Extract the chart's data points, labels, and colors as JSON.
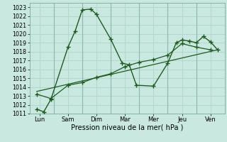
{
  "xlabel": "Pression niveau de la mer( hPa )",
  "ylim": [
    1011,
    1023.5
  ],
  "yticks": [
    1011,
    1012,
    1013,
    1014,
    1015,
    1016,
    1017,
    1018,
    1019,
    1020,
    1021,
    1022,
    1023
  ],
  "xlim": [
    -0.2,
    13.5
  ],
  "xtick_positions": [
    0.5,
    2.5,
    4.5,
    6.5,
    8.5,
    10.5,
    12.5
  ],
  "xtick_labels": [
    "Lun",
    "Sam",
    "Dim",
    "Mar",
    "Mer",
    "Jeu",
    "Ven"
  ],
  "bg_color": "#c8e8e0",
  "grid_color": "#b0d4ca",
  "line_color": "#1e5c1e",
  "line1_x": [
    0.3,
    0.8,
    1.3,
    2.5,
    3.0,
    3.5,
    4.1,
    4.5,
    5.5,
    6.3,
    6.8,
    7.3,
    8.5,
    9.5,
    10.1,
    10.5,
    11.0,
    11.5,
    12.0,
    12.5,
    13.0
  ],
  "line1_y": [
    1011.5,
    1011.2,
    1012.6,
    1018.5,
    1020.3,
    1022.7,
    1022.8,
    1022.2,
    1019.4,
    1016.7,
    1016.5,
    1014.2,
    1014.1,
    1016.7,
    1019.0,
    1019.3,
    1019.2,
    1019.0,
    1019.7,
    1019.1,
    1018.2
  ],
  "line2_x": [
    0.3,
    1.3,
    2.5,
    3.5,
    4.5,
    5.5,
    6.5,
    7.5,
    8.5,
    9.5,
    10.5,
    11.5,
    12.5
  ],
  "line2_y": [
    1013.2,
    1012.7,
    1014.2,
    1014.5,
    1015.1,
    1015.5,
    1016.3,
    1016.8,
    1017.1,
    1017.6,
    1018.9,
    1018.5,
    1018.2
  ],
  "line3_x": [
    0.3,
    13.0
  ],
  "line3_y": [
    1013.5,
    1018.2
  ]
}
